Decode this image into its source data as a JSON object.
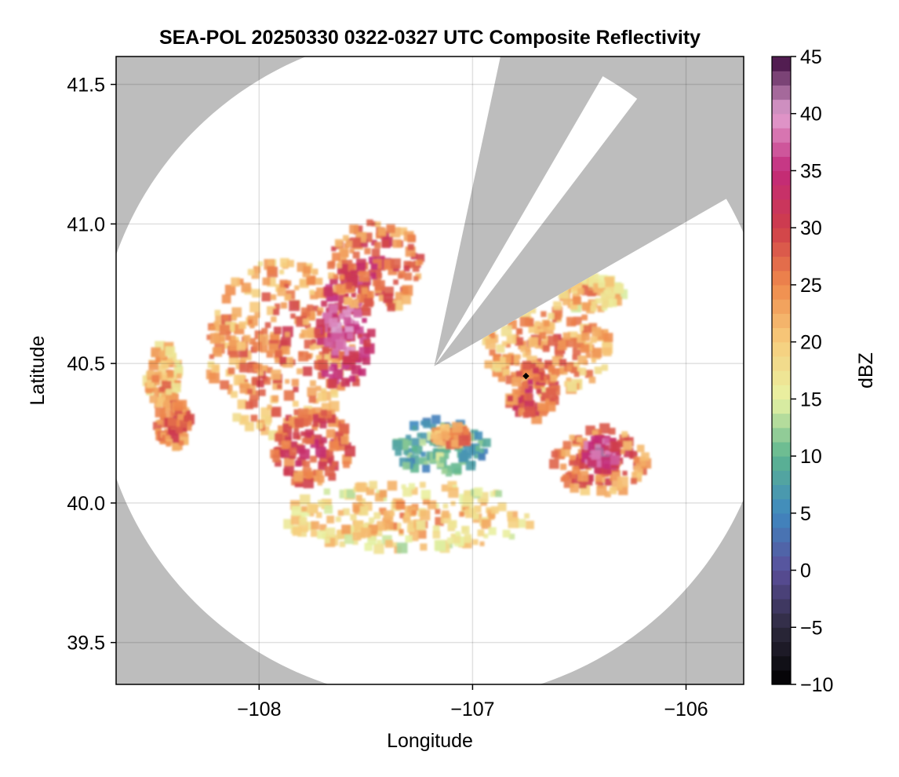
{
  "chart_data": {
    "type": "heatmap",
    "title": "SEA-POL 20250330 0322-0327 UTC Composite Reflectivity",
    "xlabel": "Longitude",
    "ylabel": "Latitude",
    "xlim": [
      -108.67,
      -105.73
    ],
    "ylim": [
      39.35,
      41.6
    ],
    "xticks": [
      -108,
      -107,
      -106
    ],
    "yticks": [
      39.5,
      40.0,
      40.5,
      41.0,
      41.5
    ],
    "xtick_labels": [
      "−108",
      "−107",
      "−106"
    ],
    "ytick_labels": [
      "39.5",
      "40.0",
      "40.5",
      "41.0",
      "41.5"
    ],
    "grid": true,
    "background_color": "#bdbdbd",
    "radar": {
      "center_lon": -107.18,
      "center_lat": 40.49,
      "range_deg_lon": 1.58,
      "range_deg_lat": 1.2,
      "blocked_sectors_deg_from_north": [
        [
          12,
          30
        ],
        [
          37,
          60
        ]
      ],
      "marker": {
        "lon": -106.75,
        "lat": 40.455
      }
    },
    "colorbar": {
      "label": "dBZ",
      "min": -10,
      "max": 45,
      "ticks": [
        -10,
        -5,
        0,
        5,
        10,
        15,
        20,
        25,
        30,
        35,
        40,
        45
      ],
      "tick_labels": [
        "−10",
        "−5",
        "0",
        "5",
        "10",
        "15",
        "20",
        "25",
        "30",
        "35",
        "40",
        "45"
      ],
      "colormap": "spectral-like",
      "stops": [
        {
          "v": -10,
          "c": "#000000"
        },
        {
          "v": -5,
          "c": "#2e2a3e"
        },
        {
          "v": 0,
          "c": "#5a4f9a"
        },
        {
          "v": 5,
          "c": "#3f88c0"
        },
        {
          "v": 10,
          "c": "#5db58f"
        },
        {
          "v": 15,
          "c": "#e8f3a4"
        },
        {
          "v": 20,
          "c": "#f7cd7d"
        },
        {
          "v": 25,
          "c": "#ef8a4c"
        },
        {
          "v": 30,
          "c": "#cf3d4a"
        },
        {
          "v": 35,
          "c": "#c2297a"
        },
        {
          "v": 40,
          "c": "#e3a2d2"
        },
        {
          "v": 45,
          "c": "#3d0a3e"
        }
      ]
    },
    "echo_regions": [
      {
        "name": "western-main-storm",
        "lon": -107.9,
        "lat": 40.55,
        "rlon": 0.34,
        "rlat": 0.32,
        "dbz": 26
      },
      {
        "name": "western-core",
        "lon": -107.6,
        "lat": 40.62,
        "rlon": 0.13,
        "rlat": 0.22,
        "dbz": 36
      },
      {
        "name": "northern-band",
        "lon": -107.45,
        "lat": 40.85,
        "rlon": 0.22,
        "rlat": 0.16,
        "dbz": 29
      },
      {
        "name": "south-west-core",
        "lon": -107.75,
        "lat": 40.2,
        "rlon": 0.18,
        "rlat": 0.14,
        "dbz": 30
      },
      {
        "name": "west-edge-cells",
        "lon": -108.45,
        "lat": 40.45,
        "rlon": 0.08,
        "rlat": 0.12,
        "dbz": 23
      },
      {
        "name": "west-edge-south",
        "lon": -108.4,
        "lat": 40.28,
        "rlon": 0.08,
        "rlat": 0.08,
        "dbz": 28
      },
      {
        "name": "eastern-storm",
        "lon": -106.65,
        "lat": 40.55,
        "rlon": 0.3,
        "rlat": 0.16,
        "dbz": 25
      },
      {
        "name": "eastern-core",
        "lon": -106.72,
        "lat": 40.4,
        "rlon": 0.12,
        "rlat": 0.1,
        "dbz": 30
      },
      {
        "name": "south-east-cluster",
        "lon": -106.4,
        "lat": 40.15,
        "rlon": 0.22,
        "rlat": 0.12,
        "dbz": 28
      },
      {
        "name": "south-east-core",
        "lon": -106.4,
        "lat": 40.17,
        "rlon": 0.08,
        "rlat": 0.06,
        "dbz": 38
      },
      {
        "name": "central-weak-echo",
        "lon": -107.15,
        "lat": 40.2,
        "rlon": 0.22,
        "rlat": 0.1,
        "dbz": 11
      },
      {
        "name": "central-cores",
        "lon": -107.1,
        "lat": 40.24,
        "rlon": 0.08,
        "rlat": 0.04,
        "dbz": 27
      },
      {
        "name": "southern-scatter",
        "lon": -107.3,
        "lat": 39.95,
        "rlon": 0.6,
        "rlat": 0.12,
        "dbz": 21
      },
      {
        "name": "north-east-edge",
        "lon": -106.45,
        "lat": 40.75,
        "rlon": 0.16,
        "rlat": 0.06,
        "dbz": 22
      }
    ]
  }
}
